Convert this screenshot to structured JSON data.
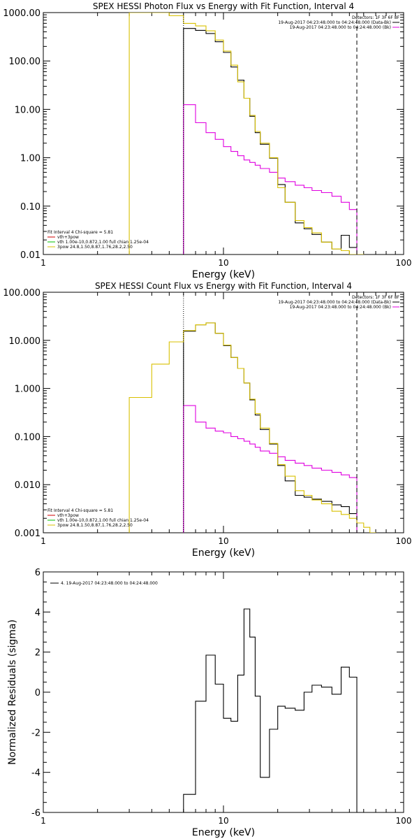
{
  "chart_data": [
    {
      "type": "line",
      "title": "SPEX HESSI Photon Flux vs Energy with Fit Function, Interval 4",
      "xlabel": "Energy (keV)",
      "ylabel": "",
      "xscale": "log",
      "yscale": "log",
      "xlim": [
        1,
        100
      ],
      "ylim": [
        0.01,
        1000
      ],
      "x_ticks": [
        "1",
        "10",
        "100"
      ],
      "y_ticks": [
        "0.01",
        "0.10",
        "1.00",
        "10.00",
        "100.00",
        "1000.00"
      ],
      "legend_top_right": [
        "Detectors: 1F 3F 6F 8F",
        "19-Aug-2017 04:23:48.000 to 04:24:48.000 (Data-Bk)",
        "19-Aug-2017 04:23:48.000 to 04:24:48.000 (Bk)"
      ],
      "legend_bottom_left": [
        "Fit Interval 4   Chi-square = 5.81",
        "vth+3pow",
        "vth 1.00e-10,0.872,1.00  full chian 1.25e-04",
        "3pow 24.8,1.50,8.87,1.76,28.2,2.50"
      ],
      "vlines_dotted": [
        6.0
      ],
      "vlines_dashed": [
        55.0
      ],
      "colors": {
        "data": "#000000",
        "bk": "#e000e0",
        "fit": "#d8c000",
        "legend_red": "#d00000",
        "legend_green": "#00c000"
      },
      "series": [
        {
          "name": "(Data-Bk)",
          "edges": [
            6,
            7,
            8,
            9,
            10,
            11,
            12,
            13,
            14,
            15,
            16,
            18,
            20,
            22,
            25,
            28,
            31,
            35,
            40,
            45,
            50,
            55
          ],
          "values": [
            470,
            430,
            370,
            250,
            150,
            75,
            40,
            17,
            7.2,
            3.3,
            1.9,
            0.98,
            0.28,
            0.12,
            0.045,
            0.034,
            0.026,
            0.018,
            0.013,
            0.025,
            0.014
          ],
          "color": "#000000"
        },
        {
          "name": "(Bk)",
          "edges": [
            6,
            7,
            8,
            9,
            10,
            11,
            12,
            13,
            14,
            15,
            16,
            18,
            20,
            22,
            25,
            28,
            31,
            35,
            40,
            45,
            50,
            55
          ],
          "values": [
            12.5,
            5.3,
            3.3,
            2.4,
            1.7,
            1.35,
            1.1,
            0.9,
            0.8,
            0.7,
            0.6,
            0.5,
            0.38,
            0.32,
            0.27,
            0.24,
            0.21,
            0.19,
            0.16,
            0.12,
            0.085
          ],
          "color": "#e000e0"
        },
        {
          "name": "vth+3pow",
          "edges": [
            3.0,
            3.5,
            4.0,
            5.0,
            6.0,
            7.0,
            8.0,
            9.0,
            10,
            11,
            12,
            13,
            14,
            15,
            16,
            18,
            20,
            22,
            25,
            28,
            31,
            35,
            40,
            45,
            50,
            55,
            60
          ],
          "values": [
            1000,
            1000,
            1000,
            860,
            600,
            530,
            420,
            270,
            160,
            82,
            37,
            17,
            7.5,
            3.5,
            2.0,
            1.0,
            0.24,
            0.12,
            0.05,
            0.036,
            0.028,
            0.018,
            0.013,
            0.012,
            0.01,
            0.01
          ],
          "color": "#d8c000"
        }
      ]
    },
    {
      "type": "line",
      "title": "SPEX HESSI Count Flux vs Energy with Fit Function, Interval 4",
      "xlabel": "Energy (keV)",
      "ylabel": "",
      "xscale": "log",
      "yscale": "log",
      "xlim": [
        1,
        100
      ],
      "ylim": [
        0.001,
        100
      ],
      "x_ticks": [
        "1",
        "10",
        "100"
      ],
      "y_ticks": [
        "0.001",
        "0.010",
        "0.100",
        "1.000",
        "10.000",
        "100.000"
      ],
      "legend_top_right": [
        "Detectors: 1F 3F 6F 8F",
        "19-Aug-2017 04:23:48.000 to 04:24:48.000 (Data-Bk)",
        "19-Aug-2017 04:23:48.000 to 04:24:48.000 (Bk)"
      ],
      "legend_bottom_left": [
        "Fit Interval 4   Chi-square = 5.81",
        "vth+3pow",
        "vth 1.00e-10,0.872,1.00  full chian 1.25e-04",
        "3pow 24.8,1.50,8.87,1.76,28.2,2.50"
      ],
      "vlines_dotted": [
        6.0
      ],
      "vlines_dashed": [
        55.0
      ],
      "colors": {
        "data": "#000000",
        "bk": "#e000e0",
        "fit": "#d8c000",
        "legend_red": "#d00000",
        "legend_green": "#00c000"
      },
      "series": [
        {
          "name": "(Data-Bk)",
          "edges": [
            6,
            7,
            8,
            9,
            10,
            11,
            12,
            13,
            14,
            15,
            16,
            18,
            20,
            22,
            25,
            28,
            31,
            35,
            40,
            45,
            50,
            55
          ],
          "values": [
            15.5,
            21,
            23,
            14,
            7.8,
            4.4,
            2.6,
            1.3,
            0.58,
            0.28,
            0.14,
            0.07,
            0.025,
            0.012,
            0.006,
            0.0055,
            0.005,
            0.0045,
            0.0038,
            0.0035,
            0.0025
          ],
          "color": "#000000"
        },
        {
          "name": "(Bk)",
          "edges": [
            6,
            7,
            8,
            9,
            10,
            11,
            12,
            13,
            14,
            15,
            16,
            18,
            20,
            22,
            25,
            28,
            31,
            35,
            40,
            45,
            50,
            55
          ],
          "values": [
            0.44,
            0.2,
            0.15,
            0.13,
            0.12,
            0.1,
            0.09,
            0.08,
            0.07,
            0.06,
            0.05,
            0.045,
            0.038,
            0.032,
            0.028,
            0.025,
            0.022,
            0.02,
            0.018,
            0.016,
            0.014
          ],
          "color": "#e000e0"
        },
        {
          "name": "vth+3pow",
          "edges": [
            3.0,
            4.0,
            5.0,
            6.0,
            7.0,
            8.0,
            9.0,
            10,
            11,
            12,
            13,
            14,
            15,
            16,
            18,
            20,
            22,
            25,
            28,
            31,
            35,
            40,
            45,
            50,
            55,
            60,
            65,
            70
          ],
          "values": [
            0.65,
            3.2,
            9.3,
            16,
            21,
            23,
            14,
            8,
            4.4,
            2.6,
            1.3,
            0.6,
            0.3,
            0.15,
            0.072,
            0.026,
            0.015,
            0.0075,
            0.006,
            0.0048,
            0.004,
            0.0028,
            0.0024,
            0.002,
            0.0016,
            0.0013,
            0.001
          ],
          "color": "#d8c000"
        }
      ]
    },
    {
      "type": "line",
      "title": "",
      "xlabel": "Energy (keV)",
      "ylabel": "Normalized Residuals (sigma)",
      "xscale": "log",
      "yscale": "linear",
      "xlim": [
        1,
        100
      ],
      "ylim": [
        -6,
        6
      ],
      "x_ticks": [
        "1",
        "10",
        "100"
      ],
      "y_ticks": [
        "-6",
        "-4",
        "-2",
        "0",
        "2",
        "4",
        "6"
      ],
      "legend": "4. 19-Aug-2017 04:23:48.000 to 04:24:48.000",
      "series": [
        {
          "name": "4. 19-Aug-2017 04:23:48.000 to 04:24:48.000",
          "edges": [
            6,
            7,
            8,
            9,
            10,
            11,
            12,
            13,
            14,
            15,
            16,
            18,
            20,
            22,
            25,
            28,
            31,
            35,
            40,
            45,
            50,
            55
          ],
          "values": [
            -5.1,
            -0.45,
            1.85,
            0.4,
            -1.3,
            -1.45,
            0.85,
            4.15,
            2.75,
            -0.2,
            -4.25,
            -1.85,
            -0.7,
            -0.8,
            -0.9,
            0.0,
            0.35,
            0.25,
            -0.1,
            1.25,
            0.75
          ],
          "color": "#000000"
        }
      ]
    }
  ]
}
